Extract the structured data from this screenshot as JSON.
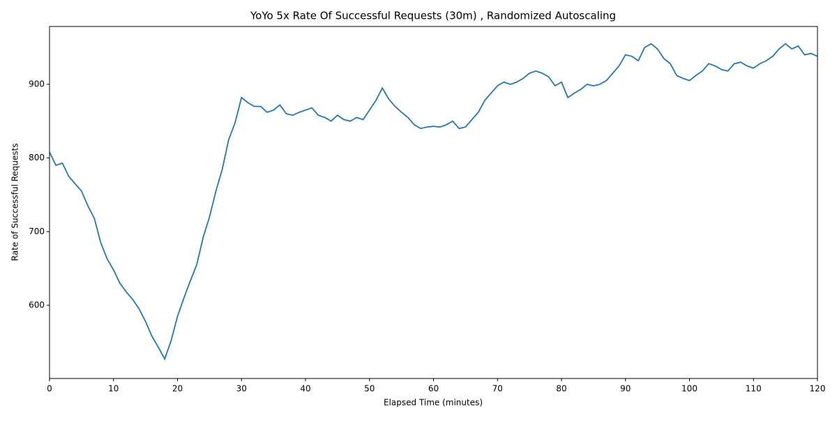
{
  "chart_data": {
    "type": "line",
    "title": "YoYo 5x Rate Of Successful Requests (30m) , Randomized Autoscaling",
    "x_label": "Elapsed Time (minutes)",
    "y_label": "Rate of Successful Requests",
    "x": [
      0,
      1,
      2,
      3,
      4,
      5,
      6,
      7,
      8,
      9,
      10,
      11,
      12,
      13,
      14,
      15,
      16,
      17,
      18,
      19,
      20,
      21,
      22,
      23,
      24,
      25,
      26,
      27,
      28,
      29,
      30,
      31,
      32,
      33,
      34,
      35,
      36,
      37,
      38,
      39,
      40,
      41,
      42,
      43,
      44,
      45,
      46,
      47,
      48,
      49,
      50,
      51,
      52,
      53,
      54,
      55,
      56,
      57,
      58,
      59,
      60,
      61,
      62,
      63,
      64,
      65,
      66,
      67,
      68,
      69,
      70,
      71,
      72,
      73,
      74,
      75,
      76,
      77,
      78,
      79,
      80,
      81,
      82,
      83,
      84,
      85,
      86,
      87,
      88,
      89,
      90,
      91,
      92,
      93,
      94,
      95,
      96,
      97,
      98,
      99,
      100,
      101,
      102,
      103,
      104,
      105,
      106,
      107,
      108,
      109,
      110,
      111,
      112,
      113,
      114,
      115,
      116,
      117,
      118,
      119,
      120
    ],
    "series": [
      {
        "name": "Rate of Successful Requests",
        "color": "#1f77b4",
        "values": [
          808,
          790,
          793,
          775,
          765,
          755,
          735,
          718,
          685,
          663,
          648,
          630,
          618,
          608,
          595,
          578,
          558,
          543,
          527,
          552,
          585,
          610,
          633,
          655,
          692,
          720,
          755,
          785,
          825,
          848,
          882,
          875,
          870,
          870,
          862,
          865,
          872,
          860,
          858,
          862,
          865,
          868,
          858,
          855,
          850,
          858,
          852,
          850,
          855,
          852,
          865,
          878,
          895,
          880,
          870,
          862,
          855,
          845,
          840,
          842,
          843,
          842,
          845,
          850,
          840,
          842,
          852,
          862,
          878,
          888,
          898,
          903,
          900,
          903,
          908,
          915,
          918,
          915,
          910,
          898,
          903,
          882,
          888,
          893,
          900,
          898,
          900,
          905,
          915,
          925,
          940,
          938,
          932,
          950,
          955,
          948,
          935,
          928,
          912,
          908,
          905,
          912,
          918,
          928,
          925,
          920,
          918,
          928,
          930,
          925,
          922,
          928,
          932,
          938,
          948,
          955,
          948,
          952,
          940,
          942,
          938
        ]
      }
    ],
    "xlim": [
      0,
      120
    ],
    "ylim": [
      500.6,
      978.5
    ],
    "xticks": [
      0,
      10,
      20,
      30,
      40,
      50,
      60,
      70,
      80,
      90,
      100,
      110,
      120
    ],
    "yticks": [
      600,
      700,
      800,
      900
    ]
  }
}
